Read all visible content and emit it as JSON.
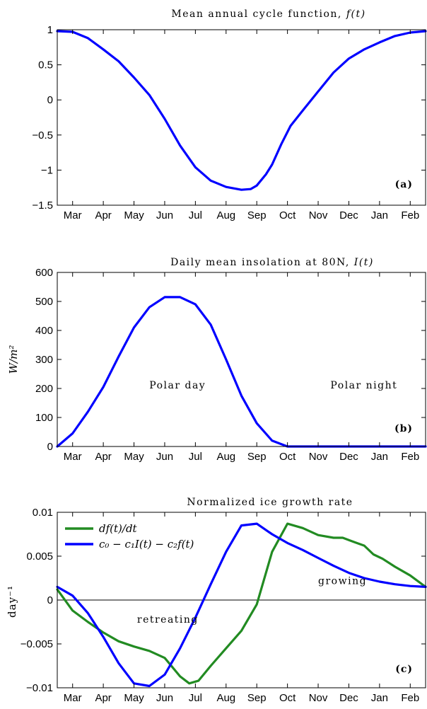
{
  "chart_data": [
    {
      "type": "line",
      "title": "Mean annual cycle function, f(t)",
      "title_text": "Mean annual cycle function,",
      "title_math": "f(t)",
      "panel_label": "(a)",
      "x_months": [
        "Mar",
        "Apr",
        "May",
        "Jun",
        "Jul",
        "Aug",
        "Sep",
        "Oct",
        "Nov",
        "Dec",
        "Jan",
        "Feb"
      ],
      "xlim": [
        0,
        12
      ],
      "ylim": [
        -1.5,
        1
      ],
      "yticks": [
        1,
        0.5,
        0,
        -0.5,
        -1,
        -1.5
      ],
      "ytick_labels": [
        "1",
        "0.5",
        "0",
        "−0.5",
        "−1",
        "−1.5"
      ],
      "ylabel": "",
      "series": [
        {
          "color": "#0000ff",
          "x": [
            0,
            0.5,
            1,
            1.5,
            2,
            2.5,
            3,
            3.5,
            4,
            4.5,
            5,
            5.5,
            6,
            6.3,
            6.5,
            6.8,
            7,
            7.3,
            7.6,
            8,
            8.5,
            9,
            9.5,
            10,
            10.5,
            11,
            11.5,
            12
          ],
          "y": [
            0.98,
            0.97,
            0.88,
            0.72,
            0.55,
            0.32,
            0.07,
            -0.27,
            -0.65,
            -0.96,
            -1.15,
            -1.24,
            -1.28,
            -1.27,
            -1.22,
            -1.06,
            -0.92,
            -0.63,
            -0.37,
            -0.15,
            0.12,
            0.39,
            0.59,
            0.72,
            0.82,
            0.91,
            0.96,
            0.98
          ]
        }
      ]
    },
    {
      "type": "line",
      "title": "Daily mean insolation at 80N, I(t)",
      "title_text": "Daily mean insolation at 80N,",
      "title_math": "I(t)",
      "panel_label": "(b)",
      "ylabel": "W/m²",
      "x_months": [
        "Mar",
        "Apr",
        "May",
        "Jun",
        "Jul",
        "Aug",
        "Sep",
        "Oct",
        "Nov",
        "Dec",
        "Jan",
        "Feb"
      ],
      "xlim": [
        0,
        12
      ],
      "ylim": [
        0,
        600
      ],
      "yticks": [
        600,
        500,
        400,
        300,
        200,
        100,
        0
      ],
      "ytick_labels": [
        "600",
        "500",
        "400",
        "300",
        "200",
        "100",
        "0"
      ],
      "annotations": [
        {
          "text": "Polar day",
          "x": 3.0,
          "y": 200
        },
        {
          "text": "Polar night",
          "x": 8.9,
          "y": 200
        }
      ],
      "series": [
        {
          "color": "#0000ff",
          "x": [
            0,
            0.5,
            1,
            1.5,
            2,
            2.5,
            3,
            3.5,
            4,
            4.5,
            5,
            5.5,
            6,
            6.5,
            7,
            7.5,
            7.8,
            8,
            9,
            10,
            11,
            12
          ],
          "y": [
            0,
            45,
            120,
            205,
            310,
            410,
            480,
            515,
            515,
            490,
            420,
            300,
            175,
            80,
            20,
            0,
            0,
            0,
            0,
            0,
            0,
            0
          ]
        }
      ]
    },
    {
      "type": "line",
      "title": "Normalized ice growth rate",
      "panel_label": "(c)",
      "ylabel": "day⁻¹",
      "x_months": [
        "Mar",
        "Apr",
        "May",
        "Jun",
        "Jul",
        "Aug",
        "Sep",
        "Oct",
        "Nov",
        "Dec",
        "Jan",
        "Feb"
      ],
      "xlim": [
        0,
        12
      ],
      "ylim": [
        -0.01,
        0.01
      ],
      "yticks": [
        0.01,
        0.005,
        0,
        -0.005,
        -0.01
      ],
      "ytick_labels": [
        "0.01",
        "0.005",
        "0",
        "−0.005",
        "−0.01"
      ],
      "zero_line": true,
      "legend_position": "top-left",
      "annotations": [
        {
          "text": "retreating",
          "x": 2.6,
          "y": -0.0026
        },
        {
          "text": "growing",
          "x": 8.5,
          "y": 0.0018
        }
      ],
      "series": [
        {
          "name": "df(t)/dt",
          "color": "#228b22",
          "x": [
            0,
            0.5,
            1,
            1.5,
            2,
            2.5,
            3,
            3.5,
            4,
            4.3,
            4.6,
            5,
            5.5,
            6,
            6.5,
            7,
            7.5,
            8,
            8.5,
            9,
            9.3,
            9.6,
            10,
            10.3,
            10.6,
            11,
            11.5,
            12
          ],
          "y": [
            0.0012,
            -0.0012,
            -0.0025,
            -0.0037,
            -0.0047,
            -0.0053,
            -0.0058,
            -0.0066,
            -0.0087,
            -0.0095,
            -0.0092,
            -0.0075,
            -0.0055,
            -0.0035,
            -0.0005,
            0.0055,
            0.0087,
            0.0082,
            0.0074,
            0.0071,
            0.0071,
            0.0067,
            0.0062,
            0.0052,
            0.0047,
            0.0038,
            0.0028,
            0.0015
          ]
        },
        {
          "name": "c₀ − c₁I(t) − c₂f(t)",
          "color": "#0000ff",
          "x": [
            0,
            0.5,
            1,
            1.5,
            2,
            2.5,
            3,
            3.5,
            4,
            4.5,
            5,
            5.5,
            6,
            6.5,
            7,
            7.5,
            8,
            8.5,
            9,
            9.5,
            10,
            10.5,
            11,
            11.5,
            12
          ],
          "y": [
            0.0015,
            0.0005,
            -0.0015,
            -0.0042,
            -0.0072,
            -0.0095,
            -0.0098,
            -0.0085,
            -0.0055,
            -0.002,
            0.0018,
            0.0055,
            0.0085,
            0.0087,
            0.0075,
            0.0065,
            0.0057,
            0.0048,
            0.0039,
            0.0031,
            0.0025,
            0.0021,
            0.0018,
            0.0016,
            0.0015
          ]
        }
      ]
    }
  ]
}
